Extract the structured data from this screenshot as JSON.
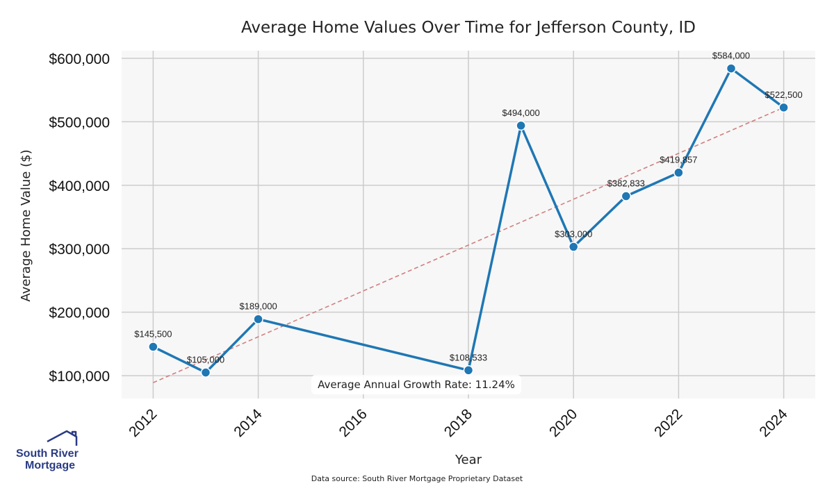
{
  "chart_data": {
    "type": "line",
    "title": "Average Home Values Over Time for Jefferson County, ID",
    "xlabel": "Year",
    "ylabel": "Average Home Value ($)",
    "x": [
      2012,
      2013,
      2014,
      2018,
      2019,
      2020,
      2021,
      2022,
      2023,
      2024
    ],
    "series": [
      {
        "values": [
          145500,
          105000,
          189000,
          108533,
          494000,
          303000,
          382833,
          419857,
          584000,
          522500
        ],
        "labels": [
          "$145,500",
          "$105,000",
          "$189,000",
          "$108,533",
          "$494,000",
          "$303,000",
          "$382,833",
          "$419,857",
          "$584,000",
          "$522,500"
        ],
        "color": "#1f77b4"
      }
    ],
    "trendline": {
      "start": [
        2012,
        89000
      ],
      "end": [
        2024,
        522500
      ],
      "color": "#d07f7f",
      "style": "dashed"
    },
    "xlim": [
      2011.4,
      2024.6
    ],
    "ylim": [
      64000,
      612000
    ],
    "xticks": [
      2012,
      2014,
      2016,
      2018,
      2020,
      2022,
      2024
    ],
    "xtick_labels": [
      "2012",
      "2014",
      "2016",
      "2018",
      "2020",
      "2022",
      "2024"
    ],
    "yticks": [
      100000,
      200000,
      300000,
      400000,
      500000,
      600000
    ],
    "ytick_labels": [
      "$100,000",
      "$200,000",
      "$300,000",
      "$400,000",
      "$500,000",
      "$600,000"
    ],
    "grid": true,
    "annotation": "Average Annual Growth Rate: 11.24%"
  },
  "footer": {
    "source": "Data source: South River Mortgage Proprietary Dataset"
  },
  "logo": {
    "line1": "South River",
    "line2": "Mortgage"
  },
  "colors": {
    "plot_background": "#f7f7f7",
    "grid": "#cccccc",
    "logo": "#2a3b84"
  }
}
